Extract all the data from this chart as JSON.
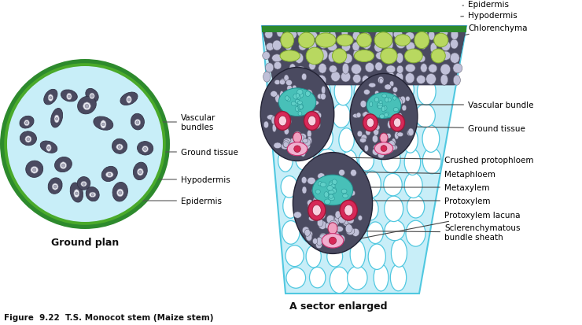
{
  "bg_color": "#ffffff",
  "ground_plan_caption": "Ground plan",
  "sector_caption": "A sector enlarged",
  "figure_caption": "Figure  9.22  T.S. Monocot stem (Maize stem)",
  "colors": {
    "light_blue": "#c8eef8",
    "dark_green": "#2d8a2d",
    "medium_green": "#4aaa2a",
    "light_green": "#b8d860",
    "dark_gray": "#555568",
    "scler_gray": "#4a4a60",
    "cell_gray": "#9090a8",
    "teal": "#48c0b8",
    "teal_dark": "#209090",
    "pink_red": "#d82858",
    "light_pink": "#f0a0c0",
    "pink_blob": "#e060a0",
    "white": "#ffffff",
    "black": "#111111",
    "cyan_line": "#50c8e0",
    "bundle_fill": "#c0c0d8"
  }
}
